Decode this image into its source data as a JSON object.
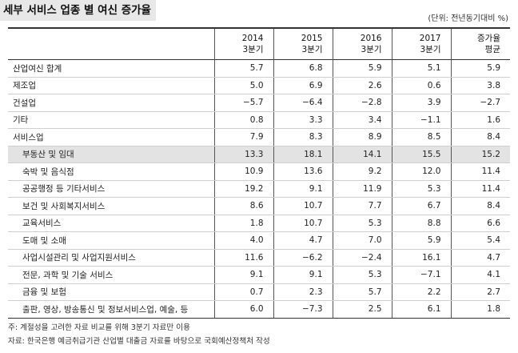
{
  "title": "세부 서비스 업종 별 여신 증가율",
  "unit": "(단위: 전년동기대비 %)",
  "columns": [
    {
      "line1": "2014",
      "line2": "3분기"
    },
    {
      "line1": "2015",
      "line2": "3분기"
    },
    {
      "line1": "2016",
      "line2": "3분기"
    },
    {
      "line1": "2017",
      "line2": "3분기"
    },
    {
      "line1": "증가율",
      "line2": "평균"
    }
  ],
  "rows": [
    {
      "label": "산업여신 합계",
      "values": [
        "5.7",
        "6.8",
        "5.9",
        "5.1",
        "5.9"
      ]
    },
    {
      "label": "제조업",
      "values": [
        "5.0",
        "6.9",
        "2.6",
        "0.6",
        "3.8"
      ]
    },
    {
      "label": "건설업",
      "values": [
        "−5.7",
        "−6.4",
        "−2.8",
        "3.9",
        "−2.7"
      ]
    },
    {
      "label": "기타",
      "values": [
        "0.8",
        "3.3",
        "3.4",
        "−1.1",
        "1.6"
      ]
    },
    {
      "label": "서비스업",
      "values": [
        "7.9",
        "8.3",
        "8.9",
        "8.5",
        "8.4"
      ]
    },
    {
      "label": "부동산 및 임대",
      "values": [
        "13.3",
        "18.1",
        "14.1",
        "15.5",
        "15.2"
      ]
    },
    {
      "label": "숙박 및 음식점",
      "values": [
        "10.9",
        "13.6",
        "9.2",
        "12.0",
        "11.4"
      ]
    },
    {
      "label": "공공행정 등 기타서비스",
      "values": [
        "19.2",
        "9.1",
        "11.9",
        "5.3",
        "11.4"
      ]
    },
    {
      "label": "보건 및 사회복지서비스",
      "values": [
        "8.6",
        "10.7",
        "7.7",
        "6.7",
        "8.4"
      ]
    },
    {
      "label": "교육서비스",
      "values": [
        "1.8",
        "10.7",
        "5.3",
        "8.8",
        "6.6"
      ]
    },
    {
      "label": "도매 및 소매",
      "values": [
        "4.0",
        "4.7",
        "7.0",
        "5.9",
        "5.4"
      ]
    },
    {
      "label": "사업시설관리 및 사업지원서비스",
      "values": [
        "11.6",
        "−6.2",
        "−2.4",
        "16.1",
        "4.7"
      ]
    },
    {
      "label": "전문, 과학 및 기술 서비스",
      "values": [
        "9.1",
        "9.1",
        "5.3",
        "−7.1",
        "4.1"
      ]
    },
    {
      "label": "금융 및 보험",
      "values": [
        "0.7",
        "2.3",
        "5.7",
        "2.2",
        "2.7"
      ]
    },
    {
      "label": "출판, 영상, 방송통신 및 정보서비스업, 예술, 등",
      "values": [
        "6.0",
        "−7.3",
        "2.5",
        "6.1",
        "1.8"
      ]
    }
  ],
  "notes": {
    "note1": "주: 계절성을 고려한 자료 비교를 위해 3분기 자료만 이용",
    "note2": "자료: 한국은행 예금취급기관 산업별 대출금 자료를 바탕으로 국회예산정책처 작성"
  }
}
